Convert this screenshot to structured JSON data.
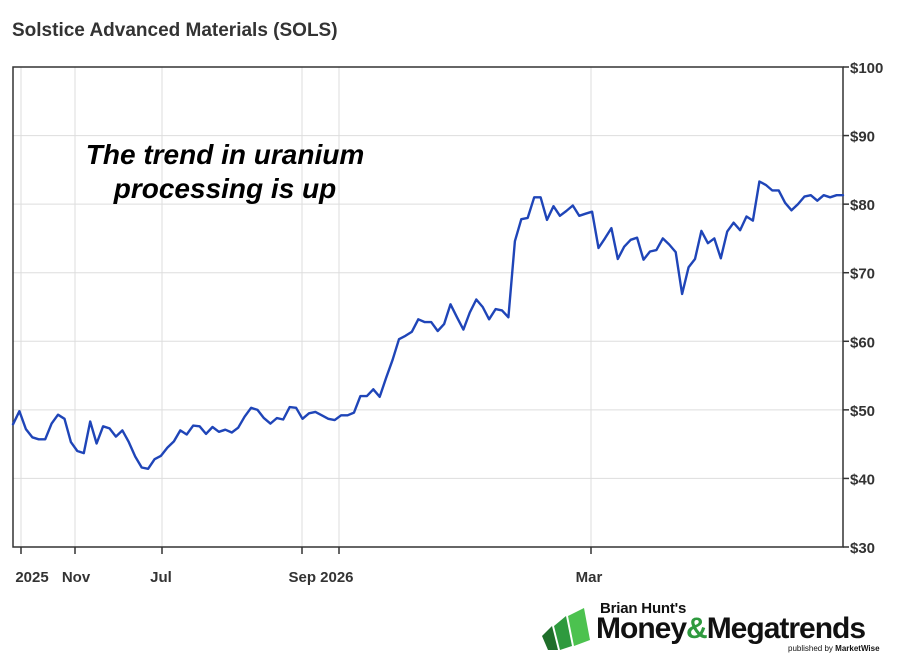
{
  "chart_data": {
    "type": "line",
    "title": "Solstice Advanced Materials (SOLS)",
    "annotation_lines": [
      "The trend in uranium",
      "processing is up"
    ],
    "ylim": [
      30,
      100
    ],
    "y_ticks": [
      30,
      40,
      50,
      60,
      70,
      80,
      90,
      100
    ],
    "y_tick_labels": [
      "$30",
      "$40",
      "$50",
      "$60",
      "$70",
      "$80",
      "$90",
      "$100"
    ],
    "x_tick_labels": [
      "2025",
      "Nov",
      "Jul",
      "Sep 2026",
      "Mar"
    ],
    "grid": true,
    "line_color": "#1f45b8",
    "series": [
      {
        "values": [
          47.9,
          49.8,
          47.2,
          46.0,
          45.7,
          45.7,
          48.0,
          49.3,
          48.7,
          45.3,
          44.0,
          43.7,
          48.3,
          45.1,
          47.6,
          47.3,
          46.1,
          47.0,
          45.3,
          43.2,
          41.6,
          41.4,
          42.8,
          43.3,
          44.5,
          45.4,
          47.0,
          46.4,
          47.7,
          47.6,
          46.5,
          47.5,
          46.8,
          47.1,
          46.7,
          47.4,
          49.0,
          50.3,
          50.0,
          48.8,
          48.0,
          48.8,
          48.6,
          50.4,
          50.3,
          48.7,
          49.5,
          49.7,
          49.2,
          48.7,
          48.5,
          49.2,
          49.2,
          49.6,
          52.0,
          52.0,
          53.0,
          51.9,
          54.7,
          57.3,
          60.3,
          60.8,
          61.4,
          63.2,
          62.8,
          62.8,
          61.5,
          62.5,
          65.4,
          63.5,
          61.7,
          64.2,
          66.1,
          65.0,
          63.2,
          64.7,
          64.5,
          63.5,
          74.6,
          77.8,
          78.0,
          81.0,
          81.0,
          77.7,
          79.7,
          78.3,
          79.0,
          79.8,
          78.3,
          78.6,
          78.9,
          73.6,
          75.0,
          76.5,
          72.0,
          73.8,
          74.8,
          75.1,
          71.9,
          73.1,
          73.3,
          75.0,
          74.1,
          73.0,
          66.9,
          70.8,
          72.0,
          76.1,
          74.3,
          75.0,
          72.1,
          76.0,
          77.3,
          76.2,
          78.2,
          77.6,
          83.3,
          82.8,
          82.0,
          82.0,
          80.2,
          79.1,
          80.0,
          81.1,
          81.3,
          80.5,
          81.3,
          81.0,
          81.3,
          81.3
        ]
      }
    ]
  },
  "logo": {
    "top": "Brian Hunt's",
    "main_a": "Money",
    "amp": "&",
    "main_b": "Megatrends",
    "sub_a": "published by ",
    "sub_b": "MarketWise"
  }
}
